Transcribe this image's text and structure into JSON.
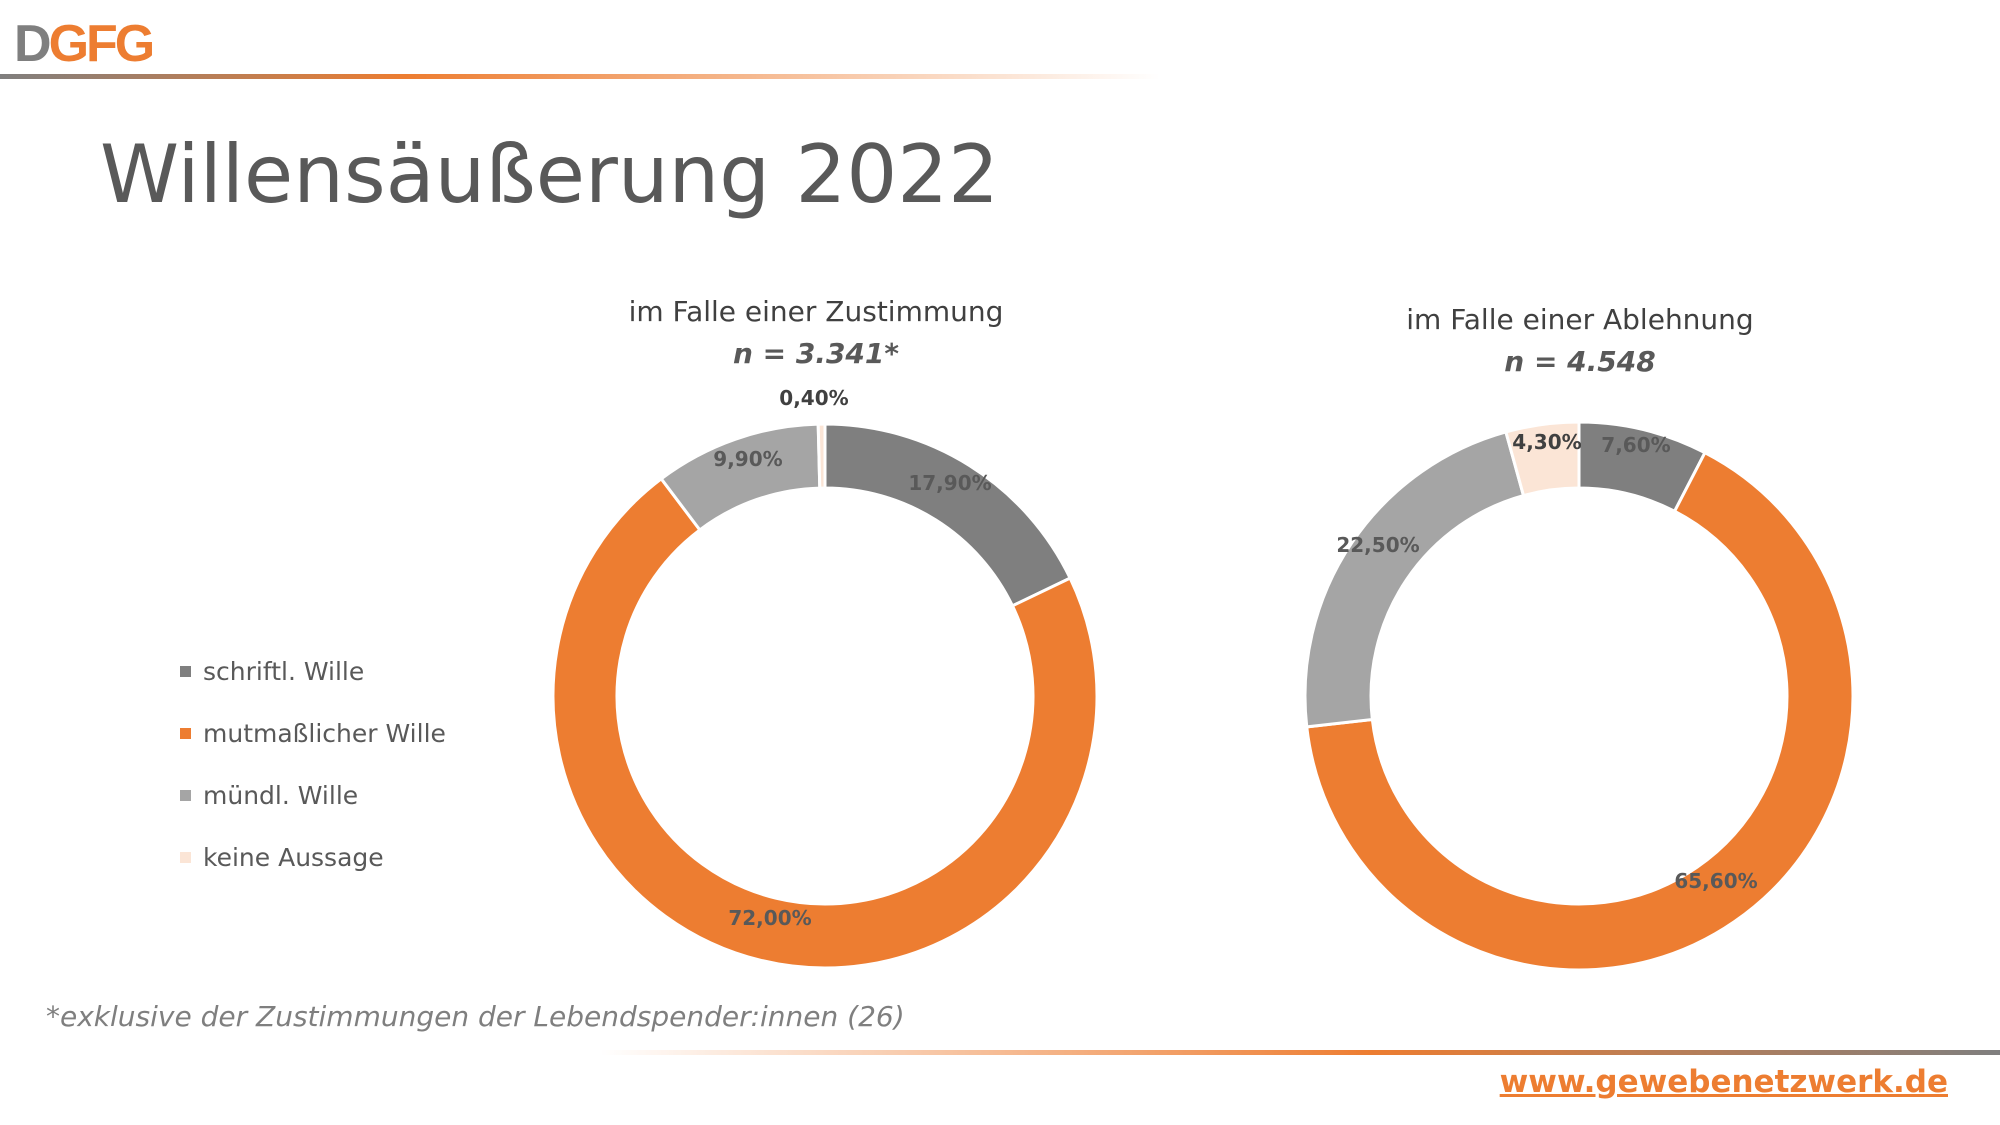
{
  "header": {
    "logo_d": "D",
    "logo_rest": "GFG",
    "title": "Willensäußerung 2022"
  },
  "colors": {
    "schriftl": "#7f7f7f",
    "mutmasslich": "#ed7d31",
    "muendl": "#a5a5a5",
    "keine": "#fbe5d6",
    "accent": "#ed7d31"
  },
  "legend": {
    "items": [
      {
        "label": "schriftl. Wille",
        "color": "#7f7f7f"
      },
      {
        "label": "mutmaßlicher Wille",
        "color": "#ed7d31"
      },
      {
        "label": "mündl. Wille",
        "color": "#a5a5a5"
      },
      {
        "label": "keine Aussage",
        "color": "#fbe5d6"
      }
    ]
  },
  "chart_data": [
    {
      "type": "pie",
      "donut": true,
      "title": "im Falle einer Zustimmung",
      "subtitle": "n = 3.341*",
      "categories": [
        "schriftl. Wille",
        "mutmaßlicher Wille",
        "mündl. Wille",
        "keine Aussage"
      ],
      "values": [
        17.9,
        72.0,
        9.9,
        0.4
      ],
      "labels": [
        "17,90%",
        "72,00%",
        "9,90%",
        "0,40%"
      ]
    },
    {
      "type": "pie",
      "donut": true,
      "title": "im Falle einer Ablehnung",
      "subtitle": "n = 4.548",
      "categories": [
        "schriftl. Wille",
        "mutmaßlicher Wille",
        "mündl. Wille",
        "keine Aussage"
      ],
      "values": [
        7.6,
        65.6,
        22.5,
        4.3
      ],
      "labels": [
        "7,60%",
        "65,60%",
        "22,50%",
        "4,30%"
      ]
    }
  ],
  "footer": {
    "footnote": "*exklusive der Zustimmungen der Lebendspender:innen (26)",
    "url": "www.gewebenetzwerk.de"
  }
}
